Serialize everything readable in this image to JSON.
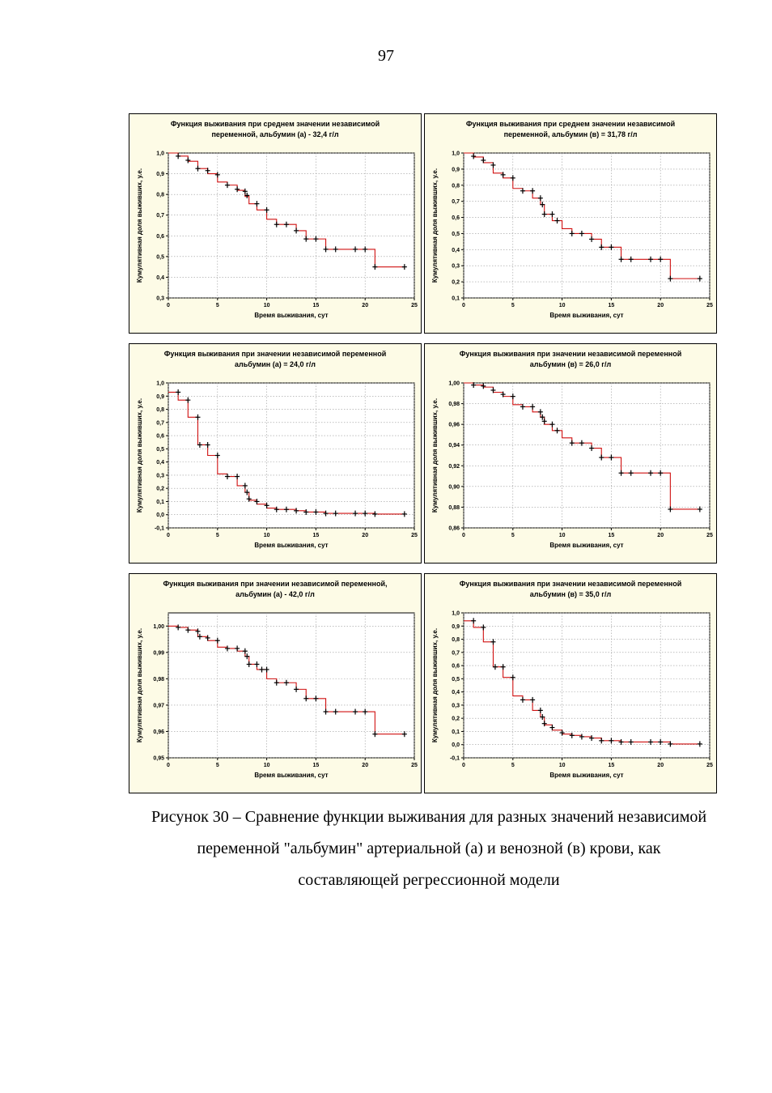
{
  "page_number": "97",
  "caption": {
    "line1": "Рисунок 30 – Сравнение функции выживания для разных значений независимой",
    "line2": "переменной \"альбумин\" артериальной (а) и венозной (в) крови, как",
    "line3": "составляющей регрессионной модели"
  },
  "chart_data": [
    {
      "type": "line",
      "title_line1": "Функция выживания при среднем значении независимой",
      "title_line2": "переменной, альбумин (а) - 32,4 г/л",
      "xlabel": "Время выживания, сут",
      "ylabel": "Кумулятивная доля выживших, у.е.",
      "xlim": [
        0,
        25
      ],
      "ylim": [
        0.3,
        1.0
      ],
      "xticks": [
        "0",
        "5",
        "10",
        "15",
        "20",
        "25"
      ],
      "yticks": [
        "0,3",
        "0,4",
        "0,5",
        "0,6",
        "0,7",
        "0,8",
        "0,9",
        "1,0"
      ],
      "series": [
        {
          "color": "#d01010",
          "x": [
            0,
            1,
            2,
            3,
            4,
            5,
            6,
            7,
            7.8,
            8.2,
            9,
            10,
            11,
            12,
            13,
            14,
            16,
            21,
            24
          ],
          "y": [
            1.0,
            0.985,
            0.96,
            0.925,
            0.9,
            0.86,
            0.845,
            0.82,
            0.79,
            0.755,
            0.725,
            0.68,
            0.655,
            0.655,
            0.625,
            0.585,
            0.535,
            0.45,
            0.45
          ]
        }
      ],
      "censored": [
        {
          "x": 1,
          "y": 0.985
        },
        {
          "x": 2,
          "y": 0.965
        },
        {
          "x": 3,
          "y": 0.925
        },
        {
          "x": 4,
          "y": 0.915
        },
        {
          "x": 5,
          "y": 0.895
        },
        {
          "x": 6,
          "y": 0.845
        },
        {
          "x": 7,
          "y": 0.825
        },
        {
          "x": 7.8,
          "y": 0.815
        },
        {
          "x": 8,
          "y": 0.795
        },
        {
          "x": 9,
          "y": 0.755
        },
        {
          "x": 10,
          "y": 0.725
        },
        {
          "x": 11,
          "y": 0.655
        },
        {
          "x": 12,
          "y": 0.655
        },
        {
          "x": 13,
          "y": 0.625
        },
        {
          "x": 14,
          "y": 0.585
        },
        {
          "x": 15,
          "y": 0.585
        },
        {
          "x": 16,
          "y": 0.535
        },
        {
          "x": 17,
          "y": 0.535
        },
        {
          "x": 19,
          "y": 0.535
        },
        {
          "x": 20,
          "y": 0.535
        },
        {
          "x": 21,
          "y": 0.45
        },
        {
          "x": 24,
          "y": 0.45
        }
      ]
    },
    {
      "type": "line",
      "title_line1": "Функция выживания при среднем значении независимой",
      "title_line2": "переменной, альбумин (в) = 31,78 г/л",
      "xlabel": "Время выживания, сут",
      "ylabel": "Кумулятивная доля выживших, у.е.",
      "xlim": [
        0,
        25
      ],
      "ylim": [
        0.1,
        1.0
      ],
      "xticks": [
        "0",
        "5",
        "10",
        "15",
        "20",
        "25"
      ],
      "yticks": [
        "0,1",
        "0,2",
        "0,3",
        "0,4",
        "0,5",
        "0,6",
        "0,7",
        "0,8",
        "0,9",
        "1,0"
      ],
      "series": [
        {
          "color": "#d01010",
          "x": [
            0,
            1,
            2,
            3,
            4,
            5,
            6,
            7,
            7.8,
            8.2,
            9,
            10,
            11,
            12,
            13,
            14,
            16,
            21,
            24
          ],
          "y": [
            1.0,
            0.975,
            0.94,
            0.875,
            0.845,
            0.78,
            0.765,
            0.72,
            0.68,
            0.62,
            0.58,
            0.53,
            0.5,
            0.5,
            0.465,
            0.415,
            0.34,
            0.22,
            0.22
          ]
        }
      ],
      "censored": [
        {
          "x": 1,
          "y": 0.98
        },
        {
          "x": 2,
          "y": 0.955
        },
        {
          "x": 3,
          "y": 0.925
        },
        {
          "x": 4,
          "y": 0.865
        },
        {
          "x": 5,
          "y": 0.845
        },
        {
          "x": 6,
          "y": 0.765
        },
        {
          "x": 7,
          "y": 0.765
        },
        {
          "x": 7.8,
          "y": 0.72
        },
        {
          "x": 8,
          "y": 0.68
        },
        {
          "x": 8.2,
          "y": 0.62
        },
        {
          "x": 9,
          "y": 0.62
        },
        {
          "x": 9.5,
          "y": 0.58
        },
        {
          "x": 11,
          "y": 0.5
        },
        {
          "x": 12,
          "y": 0.5
        },
        {
          "x": 13,
          "y": 0.465
        },
        {
          "x": 14,
          "y": 0.415
        },
        {
          "x": 15,
          "y": 0.415
        },
        {
          "x": 16,
          "y": 0.34
        },
        {
          "x": 17,
          "y": 0.34
        },
        {
          "x": 19,
          "y": 0.34
        },
        {
          "x": 20,
          "y": 0.34
        },
        {
          "x": 21,
          "y": 0.22
        },
        {
          "x": 24,
          "y": 0.22
        }
      ]
    },
    {
      "type": "line",
      "title_line1": "Функция выживания при   значении независимой переменной",
      "title_line2": "альбумин (а) = 24,0 г/л",
      "xlabel": "Время выживания, сут",
      "ylabel": "Кумулятивная доля выживших, у.е.",
      "xlim": [
        0,
        25
      ],
      "ylim": [
        -0.1,
        1.0
      ],
      "xticks": [
        "0",
        "5",
        "10",
        "15",
        "20",
        "25"
      ],
      "yticks": [
        "-0,1",
        "0,0",
        "0,1",
        "0,2",
        "0,3",
        "0,4",
        "0,5",
        "0,6",
        "0,7",
        "0,8",
        "0,9",
        "1,0"
      ],
      "series": [
        {
          "color": "#d01010",
          "x": [
            0,
            1,
            2,
            3,
            4,
            5,
            6,
            7,
            7.8,
            8.2,
            9,
            10,
            11,
            12,
            13,
            14,
            16,
            21,
            24
          ],
          "y": [
            0.93,
            0.87,
            0.74,
            0.53,
            0.45,
            0.31,
            0.29,
            0.22,
            0.17,
            0.11,
            0.08,
            0.05,
            0.04,
            0.04,
            0.03,
            0.02,
            0.01,
            0.005,
            0.005
          ]
        }
      ],
      "censored": [
        {
          "x": 1,
          "y": 0.93
        },
        {
          "x": 2,
          "y": 0.87
        },
        {
          "x": 3,
          "y": 0.74
        },
        {
          "x": 3.2,
          "y": 0.53
        },
        {
          "x": 4,
          "y": 0.53
        },
        {
          "x": 5,
          "y": 0.45
        },
        {
          "x": 6,
          "y": 0.29
        },
        {
          "x": 7,
          "y": 0.29
        },
        {
          "x": 7.8,
          "y": 0.22
        },
        {
          "x": 8,
          "y": 0.17
        },
        {
          "x": 8.2,
          "y": 0.12
        },
        {
          "x": 9,
          "y": 0.1
        },
        {
          "x": 10,
          "y": 0.07
        },
        {
          "x": 11,
          "y": 0.04
        },
        {
          "x": 12,
          "y": 0.04
        },
        {
          "x": 13,
          "y": 0.03
        },
        {
          "x": 14,
          "y": 0.02
        },
        {
          "x": 15,
          "y": 0.02
        },
        {
          "x": 16,
          "y": 0.01
        },
        {
          "x": 17,
          "y": 0.01
        },
        {
          "x": 19,
          "y": 0.01
        },
        {
          "x": 20,
          "y": 0.01
        },
        {
          "x": 21,
          "y": 0.005
        },
        {
          "x": 24,
          "y": 0.005
        }
      ]
    },
    {
      "type": "line",
      "title_line1": "Функция выживания при   значении независимой переменной",
      "title_line2": "альбумин (в) = 26,0 г/л",
      "xlabel": "Время выживания, сут",
      "ylabel": "Кумулятивная доля выживших, у.е.",
      "xlim": [
        0,
        25
      ],
      "ylim": [
        0.86,
        1.0
      ],
      "xticks": [
        "0",
        "5",
        "10",
        "15",
        "20",
        "25"
      ],
      "yticks": [
        "0,86",
        "0,88",
        "0,90",
        "0,92",
        "0,94",
        "0,96",
        "0,98",
        "1,00"
      ],
      "series": [
        {
          "color": "#d01010",
          "x": [
            0,
            1,
            2,
            3,
            4,
            5,
            6,
            7,
            7.8,
            8.2,
            9,
            10,
            11,
            12,
            13,
            14,
            16,
            21,
            24
          ],
          "y": [
            1.0,
            0.998,
            0.996,
            0.991,
            0.987,
            0.979,
            0.977,
            0.972,
            0.967,
            0.96,
            0.954,
            0.947,
            0.942,
            0.942,
            0.937,
            0.928,
            0.913,
            0.878,
            0.878
          ]
        }
      ],
      "censored": [
        {
          "x": 1,
          "y": 0.998
        },
        {
          "x": 2,
          "y": 0.997
        },
        {
          "x": 3,
          "y": 0.993
        },
        {
          "x": 4,
          "y": 0.989
        },
        {
          "x": 5,
          "y": 0.987
        },
        {
          "x": 6,
          "y": 0.977
        },
        {
          "x": 7,
          "y": 0.977
        },
        {
          "x": 7.8,
          "y": 0.972
        },
        {
          "x": 8,
          "y": 0.967
        },
        {
          "x": 8.2,
          "y": 0.963
        },
        {
          "x": 9,
          "y": 0.96
        },
        {
          "x": 9.5,
          "y": 0.954
        },
        {
          "x": 11,
          "y": 0.942
        },
        {
          "x": 12,
          "y": 0.942
        },
        {
          "x": 13,
          "y": 0.937
        },
        {
          "x": 14,
          "y": 0.928
        },
        {
          "x": 15,
          "y": 0.928
        },
        {
          "x": 16,
          "y": 0.913
        },
        {
          "x": 17,
          "y": 0.913
        },
        {
          "x": 19,
          "y": 0.913
        },
        {
          "x": 20,
          "y": 0.913
        },
        {
          "x": 21,
          "y": 0.878
        },
        {
          "x": 24,
          "y": 0.878
        }
      ]
    },
    {
      "type": "line",
      "title_line1": "Функция выживания при   значении независимой переменной,",
      "title_line2": "альбумин (а) - 42,0 г/л",
      "xlabel": "Время выживания, сут",
      "ylabel": "Кумулятивная доля выживших, у.е.",
      "xlim": [
        0,
        25
      ],
      "ylim": [
        0.95,
        1.005
      ],
      "xticks": [
        "0",
        "5",
        "10",
        "15",
        "20",
        "25"
      ],
      "yticks": [
        "0,95",
        "0,96",
        "0,97",
        "0,98",
        "0,99",
        "1,00"
      ],
      "series": [
        {
          "color": "#d01010",
          "x": [
            0,
            1,
            2,
            3,
            4,
            5,
            6,
            7,
            7.8,
            8.2,
            9,
            10,
            11,
            12,
            13,
            14,
            16,
            21,
            24
          ],
          "y": [
            1.0,
            0.9995,
            0.9985,
            0.996,
            0.9945,
            0.992,
            0.9915,
            0.9905,
            0.9885,
            0.9855,
            0.9835,
            0.98,
            0.9785,
            0.9785,
            0.976,
            0.9725,
            0.9675,
            0.959,
            0.959
          ]
        }
      ],
      "censored": [
        {
          "x": 1,
          "y": 0.9995
        },
        {
          "x": 2,
          "y": 0.9985
        },
        {
          "x": 3,
          "y": 0.998
        },
        {
          "x": 3.2,
          "y": 0.996
        },
        {
          "x": 4,
          "y": 0.9955
        },
        {
          "x": 5,
          "y": 0.9945
        },
        {
          "x": 6,
          "y": 0.9915
        },
        {
          "x": 7,
          "y": 0.9915
        },
        {
          "x": 7.8,
          "y": 0.9905
        },
        {
          "x": 8,
          "y": 0.9885
        },
        {
          "x": 8.2,
          "y": 0.9855
        },
        {
          "x": 9,
          "y": 0.9855
        },
        {
          "x": 9.5,
          "y": 0.9835
        },
        {
          "x": 10,
          "y": 0.9835
        },
        {
          "x": 11,
          "y": 0.9785
        },
        {
          "x": 12,
          "y": 0.9785
        },
        {
          "x": 13,
          "y": 0.976
        },
        {
          "x": 14,
          "y": 0.9725
        },
        {
          "x": 15,
          "y": 0.9725
        },
        {
          "x": 16,
          "y": 0.9675
        },
        {
          "x": 17,
          "y": 0.9675
        },
        {
          "x": 19,
          "y": 0.9675
        },
        {
          "x": 20,
          "y": 0.9675
        },
        {
          "x": 21,
          "y": 0.959
        },
        {
          "x": 24,
          "y": 0.959
        }
      ]
    },
    {
      "type": "line",
      "title_line1": "Функция выживания при   значении независимой переменной",
      "title_line2": "альбумин (в) = 35,0 г/л",
      "xlabel": "Время выживания, сут",
      "ylabel": "Кумулятивная доля выживших, у.е.",
      "xlim": [
        0,
        25
      ],
      "ylim": [
        -0.1,
        1.0
      ],
      "xticks": [
        "0",
        "5",
        "10",
        "15",
        "20",
        "25"
      ],
      "yticks": [
        "-0,1",
        "0,0",
        "0,1",
        "0,2",
        "0,3",
        "0,4",
        "0,5",
        "0,6",
        "0,7",
        "0,8",
        "0,9",
        "1,0"
      ],
      "series": [
        {
          "color": "#d01010",
          "x": [
            0,
            1,
            2,
            3,
            4,
            5,
            6,
            7,
            7.8,
            8.2,
            9,
            10,
            11,
            12,
            13,
            14,
            16,
            21,
            24
          ],
          "y": [
            0.94,
            0.89,
            0.78,
            0.59,
            0.51,
            0.37,
            0.34,
            0.26,
            0.21,
            0.15,
            0.11,
            0.08,
            0.07,
            0.06,
            0.05,
            0.03,
            0.02,
            0.005,
            0.005
          ]
        }
      ],
      "censored": [
        {
          "x": 1,
          "y": 0.94
        },
        {
          "x": 2,
          "y": 0.89
        },
        {
          "x": 3,
          "y": 0.78
        },
        {
          "x": 3.2,
          "y": 0.59
        },
        {
          "x": 4,
          "y": 0.59
        },
        {
          "x": 5,
          "y": 0.51
        },
        {
          "x": 6,
          "y": 0.34
        },
        {
          "x": 7,
          "y": 0.34
        },
        {
          "x": 7.8,
          "y": 0.26
        },
        {
          "x": 8,
          "y": 0.21
        },
        {
          "x": 8.2,
          "y": 0.16
        },
        {
          "x": 9,
          "y": 0.13
        },
        {
          "x": 10,
          "y": 0.09
        },
        {
          "x": 11,
          "y": 0.07
        },
        {
          "x": 12,
          "y": 0.06
        },
        {
          "x": 13,
          "y": 0.05
        },
        {
          "x": 14,
          "y": 0.03
        },
        {
          "x": 15,
          "y": 0.03
        },
        {
          "x": 16,
          "y": 0.02
        },
        {
          "x": 17,
          "y": 0.02
        },
        {
          "x": 19,
          "y": 0.02
        },
        {
          "x": 20,
          "y": 0.02
        },
        {
          "x": 21,
          "y": 0.005
        },
        {
          "x": 24,
          "y": 0.005
        }
      ]
    }
  ]
}
